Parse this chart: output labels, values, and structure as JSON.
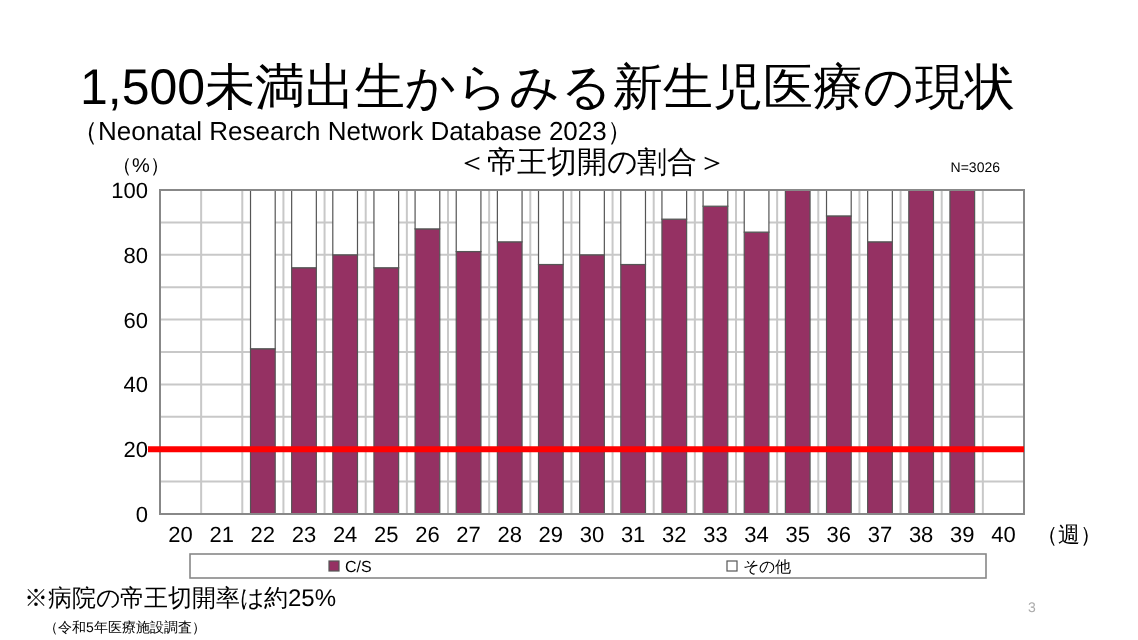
{
  "chart_data": {
    "type": "bar",
    "stacked": true,
    "title": "1,500未満出生からみる新生児医療の現状",
    "subtitle": "（Neonatal Research Network Database 2023）",
    "ylabel": "（%）",
    "xlabel": "（週）",
    "annotations": [
      "＜帝王切開の割合＞",
      "N=3026",
      "※病院の帝王切開率は約25%",
      "（令和5年医療施設調査）",
      "3"
    ],
    "categories": [
      "20",
      "21",
      "22",
      "23",
      "24",
      "25",
      "26",
      "27",
      "28",
      "29",
      "30",
      "31",
      "32",
      "33",
      "34",
      "35",
      "36",
      "37",
      "38",
      "39",
      "40"
    ],
    "series": [
      {
        "name": "C/S",
        "color": "#953163",
        "values": [
          null,
          null,
          51,
          76,
          80,
          76,
          88,
          81,
          84,
          77,
          80,
          77,
          91,
          95,
          87,
          100,
          92,
          84,
          100,
          100,
          null
        ]
      },
      {
        "name": "その他",
        "color": "#ffffff",
        "values": [
          null,
          null,
          49,
          24,
          20,
          24,
          12,
          19,
          16,
          23,
          20,
          23,
          9,
          5,
          13,
          0,
          8,
          16,
          0,
          0,
          null
        ]
      }
    ],
    "ylim": [
      0,
      100
    ],
    "yticks": [
      0,
      {
        "value": 10,
        "label": null
      },
      20,
      {
        "value": 30,
        "label": null
      },
      40,
      {
        "value": 50,
        "label": null
      },
      60,
      {
        "value": 70,
        "label": null
      },
      80,
      {
        "value": 90,
        "label": null
      },
      100
    ],
    "grid": true,
    "legend": "bottom",
    "ref_lines": [
      {
        "axis": "y",
        "value": 20,
        "color": "#ff0000"
      }
    ]
  }
}
